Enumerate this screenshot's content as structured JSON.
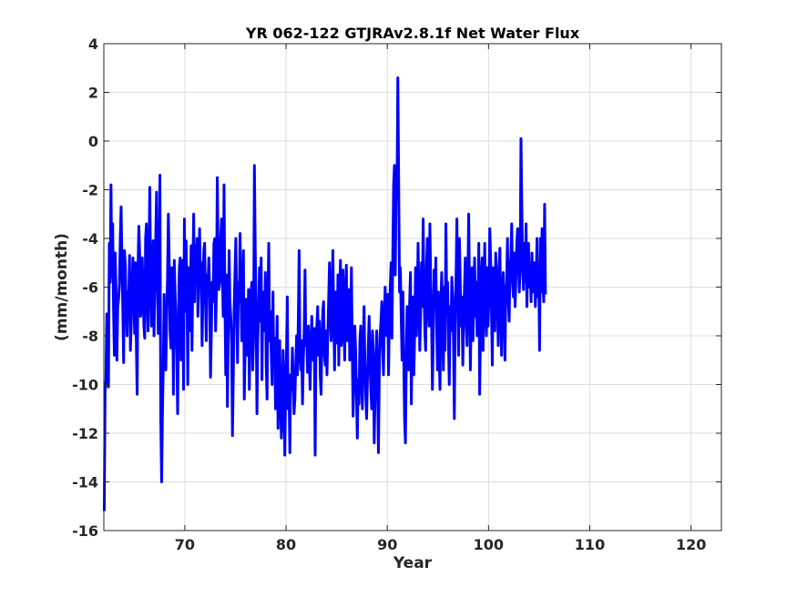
{
  "chart_data": {
    "type": "line",
    "title": "YR 062-122 GTJRAv2.8.1f Net Water Flux",
    "xlabel": "Year",
    "ylabel": "(mm/month)",
    "xlim": [
      62,
      123
    ],
    "ylim": [
      -16,
      4
    ],
    "xticks": [
      70,
      80,
      90,
      100,
      110,
      120
    ],
    "yticks": [
      -16,
      -14,
      -12,
      -10,
      -8,
      -6,
      -4,
      -2,
      0,
      2,
      4
    ],
    "grid": true,
    "series": [
      {
        "name": "",
        "color": "#0000ff",
        "x_start": 62.04,
        "x_step": 0.08333,
        "values": [
          -15.2,
          -10.3,
          -9.8,
          -7.1,
          -8.0,
          -10.1,
          -4.2,
          -5.8,
          -1.8,
          -5.6,
          -3.4,
          -6.9,
          -8.8,
          -4.6,
          -6.2,
          -9.0,
          -6.8,
          -6.5,
          -5.9,
          -4.0,
          -2.7,
          -5.0,
          -6.9,
          -9.1,
          -4.5,
          -5.1,
          -6.8,
          -8.0,
          -6.2,
          -6.5,
          -4.7,
          -8.6,
          -7.5,
          -5.9,
          -4.8,
          -6.2,
          -7.9,
          -5.0,
          -8.2,
          -10.4,
          -5.3,
          -3.5,
          -4.6,
          -7.2,
          -6.9,
          -4.8,
          -6.0,
          -7.6,
          -8.1,
          -4.0,
          -3.4,
          -6.5,
          -7.8,
          -4.8,
          -1.9,
          -5.6,
          -7.6,
          -6.4,
          -4.1,
          -8.0,
          -6.0,
          -4.1,
          -2.1,
          -5.6,
          -7.9,
          -6.9,
          -1.4,
          -11.3,
          -14.0,
          -11.2,
          -9.2,
          -6.3,
          -8.9,
          -9.4,
          -7.3,
          -5.6,
          -3.0,
          -4.9,
          -7.8,
          -8.5,
          -5.2,
          -6.0,
          -10.4,
          -4.9,
          -6.2,
          -7.6,
          -8.8,
          -11.2,
          -7.0,
          -5.2,
          -4.8,
          -9.0,
          -6.3,
          -4.9,
          -10.2,
          -3.2,
          -7.0,
          -4.1,
          -5.8,
          -10.0,
          -5.2,
          -7.8,
          -6.4,
          -4.3,
          -8.6,
          -5.5,
          -3.0,
          -6.6,
          -4.3,
          -5.8,
          -4.0,
          -7.2,
          -6.1,
          -3.6,
          -5.8,
          -5.0,
          -8.4,
          -6.3,
          -4.5,
          -4.2,
          -6.5,
          -8.2,
          -5.5,
          -5.8,
          -4.8,
          -6.3,
          -9.7,
          -7.8,
          -5.8,
          -6.6,
          -4.2,
          -4.0,
          -7.8,
          -6.2,
          -1.5,
          -4.5,
          -6.1,
          -5.8,
          -4.1,
          -3.2,
          -5.3,
          -7.2,
          -1.8,
          -6.4,
          -9.6,
          -5.5,
          -10.9,
          -8.0,
          -4.5,
          -6.6,
          -7.2,
          -8.4,
          -12.1,
          -9.6,
          -6.8,
          -5.4,
          -4.0,
          -7.2,
          -9.1,
          -5.8,
          -6.6,
          -3.8,
          -6.2,
          -8.2,
          -7.0,
          -4.5,
          -10.6,
          -8.6,
          -6.5,
          -7.0,
          -8.8,
          -6.1,
          -10.2,
          -7.5,
          -6.2,
          -5.8,
          -9.4,
          -8.1,
          -1.0,
          -4.5,
          -6.8,
          -11.2,
          -8.2,
          -6.9,
          -5.2,
          -7.4,
          -4.8,
          -9.8,
          -6.2,
          -6.6,
          -7.8,
          -5.4,
          -9.2,
          -10.6,
          -6.4,
          -4.2,
          -8.2,
          -7.0,
          -8.8,
          -10.0,
          -6.2,
          -9.3,
          -8.1,
          -11.0,
          -9.0,
          -7.2,
          -11.8,
          -9.5,
          -8.2,
          -10.8,
          -12.2,
          -11.2,
          -8.6,
          -9.9,
          -12.9,
          -10.4,
          -8.8,
          -6.4,
          -11.0,
          -10.2,
          -12.8,
          -9.6,
          -10.2,
          -8.5,
          -9.8,
          -11.2,
          -10.6,
          -9.2,
          -8.0,
          -9.6,
          -7.4,
          -4.5,
          -8.8,
          -9.4,
          -8.2,
          -10.8,
          -9.0,
          -7.8,
          -5.3,
          -8.4,
          -8.0,
          -9.5,
          -7.6,
          -8.9,
          -10.2,
          -8.4,
          -7.2,
          -9.0,
          -8.1,
          -7.7,
          -12.9,
          -8.2,
          -7.6,
          -6.8,
          -8.8,
          -7.4,
          -9.6,
          -10.4,
          -8.3,
          -7.0,
          -6.6,
          -8.8,
          -9.2,
          -7.8,
          -9.6,
          -8.0,
          -6.5,
          -5.0,
          -7.2,
          -8.2,
          -6.0,
          -4.5,
          -7.2,
          -9.4,
          -6.2,
          -7.8,
          -8.3,
          -5.5,
          -9.2,
          -6.2,
          -4.9,
          -8.4,
          -7.8,
          -5.3,
          -7.4,
          -9.0,
          -6.2,
          -5.1,
          -8.2,
          -7.6,
          -6.1,
          -9.0,
          -7.8,
          -5.2,
          -8.6,
          -11.3,
          -9.8,
          -7.6,
          -8.6,
          -10.4,
          -12.2,
          -9.8,
          -10.8,
          -8.2,
          -7.6,
          -9.8,
          -11.0,
          -8.4,
          -6.8,
          -9.2,
          -10.4,
          -11.4,
          -9.8,
          -8.4,
          -7.2,
          -9.0,
          -10.2,
          -11.0,
          -7.8,
          -8.8,
          -12.4,
          -10.6,
          -9.0,
          -7.8,
          -9.8,
          -12.8,
          -9.6,
          -8.0,
          -7.4,
          -6.6,
          -8.4,
          -9.6,
          -7.2,
          -6.0,
          -7.8,
          -8.0,
          -6.3,
          -9.6,
          -7.2,
          -6.0,
          -5.0,
          -8.1,
          -4.8,
          -1.8,
          -1.0,
          -5.5,
          -1.6,
          -2.4,
          2.6,
          -1.6,
          -6.2,
          -5.2,
          -7.2,
          -9.0,
          -6.2,
          -8.8,
          -11.4,
          -12.4,
          -9.2,
          -6.8,
          -7.8,
          -9.4,
          -6.6,
          -5.4,
          -10.8,
          -8.2,
          -6.4,
          -9.6,
          -7.8,
          -5.2,
          -8.0,
          -6.8,
          -4.2,
          -6.4,
          -8.6,
          -7.2,
          -5.0,
          -6.8,
          -3.2,
          -6.0,
          -7.8,
          -8.6,
          -5.2,
          -4.0,
          -6.8,
          -7.6,
          -3.4,
          -5.8,
          -7.4,
          -10.2,
          -8.0,
          -5.3,
          -6.8,
          -4.8,
          -7.6,
          -9.4,
          -6.2,
          -8.8,
          -10.2,
          -6.8,
          -5.4,
          -7.2,
          -9.4,
          -6.0,
          -8.6,
          -3.4,
          -6.8,
          -5.8,
          -8.2,
          -10.0,
          -6.8,
          -7.8,
          -5.6,
          -6.4,
          -8.2,
          -11.4,
          -7.0,
          -5.6,
          -3.2,
          -6.4,
          -8.8,
          -4.0,
          -5.8,
          -7.6,
          -6.4,
          -9.2,
          -7.6,
          -6.0,
          -4.8,
          -7.2,
          -8.4,
          -5.8,
          -3.0,
          -6.2,
          -9.4,
          -7.0,
          -5.2,
          -8.2,
          -6.8,
          -4.8,
          -7.2,
          -5.8,
          -8.0,
          -6.8,
          -4.2,
          -10.4,
          -7.8,
          -5.4,
          -4.8,
          -8.6,
          -6.3,
          -4.2,
          -6.8,
          -8.0,
          -5.2,
          -7.6,
          -6.4,
          -3.6,
          -4.8,
          -6.9,
          -9.2,
          -5.2,
          -6.8,
          -7.8,
          -4.6,
          -5.6,
          -6.4,
          -8.4,
          -5.2,
          -4.4,
          -7.2,
          -8.8,
          -6.0,
          -5.4,
          -7.0,
          -9.0,
          -6.2,
          -5.8,
          -4.0,
          -6.6,
          -7.4,
          -5.2,
          -4.8,
          -3.4,
          -5.8,
          -6.4,
          -4.6,
          -6.8,
          -5.6,
          -4.2,
          -3.6,
          -5.0,
          -6.2,
          -5.2,
          0.1,
          -2.8,
          -5.2,
          -6.1,
          -4.2,
          -5.8,
          -3.4,
          -6.8,
          -5.0,
          -4.2,
          -6.0,
          -5.4,
          -6.6,
          -4.6,
          -5.8,
          -6.2,
          -5.0,
          -6.8,
          -5.6,
          -4.0,
          -6.4,
          -5.2,
          -8.6,
          -4.0,
          -6.2,
          -3.6,
          -5.8,
          -6.6,
          -2.6,
          -6.3
        ]
      }
    ]
  }
}
